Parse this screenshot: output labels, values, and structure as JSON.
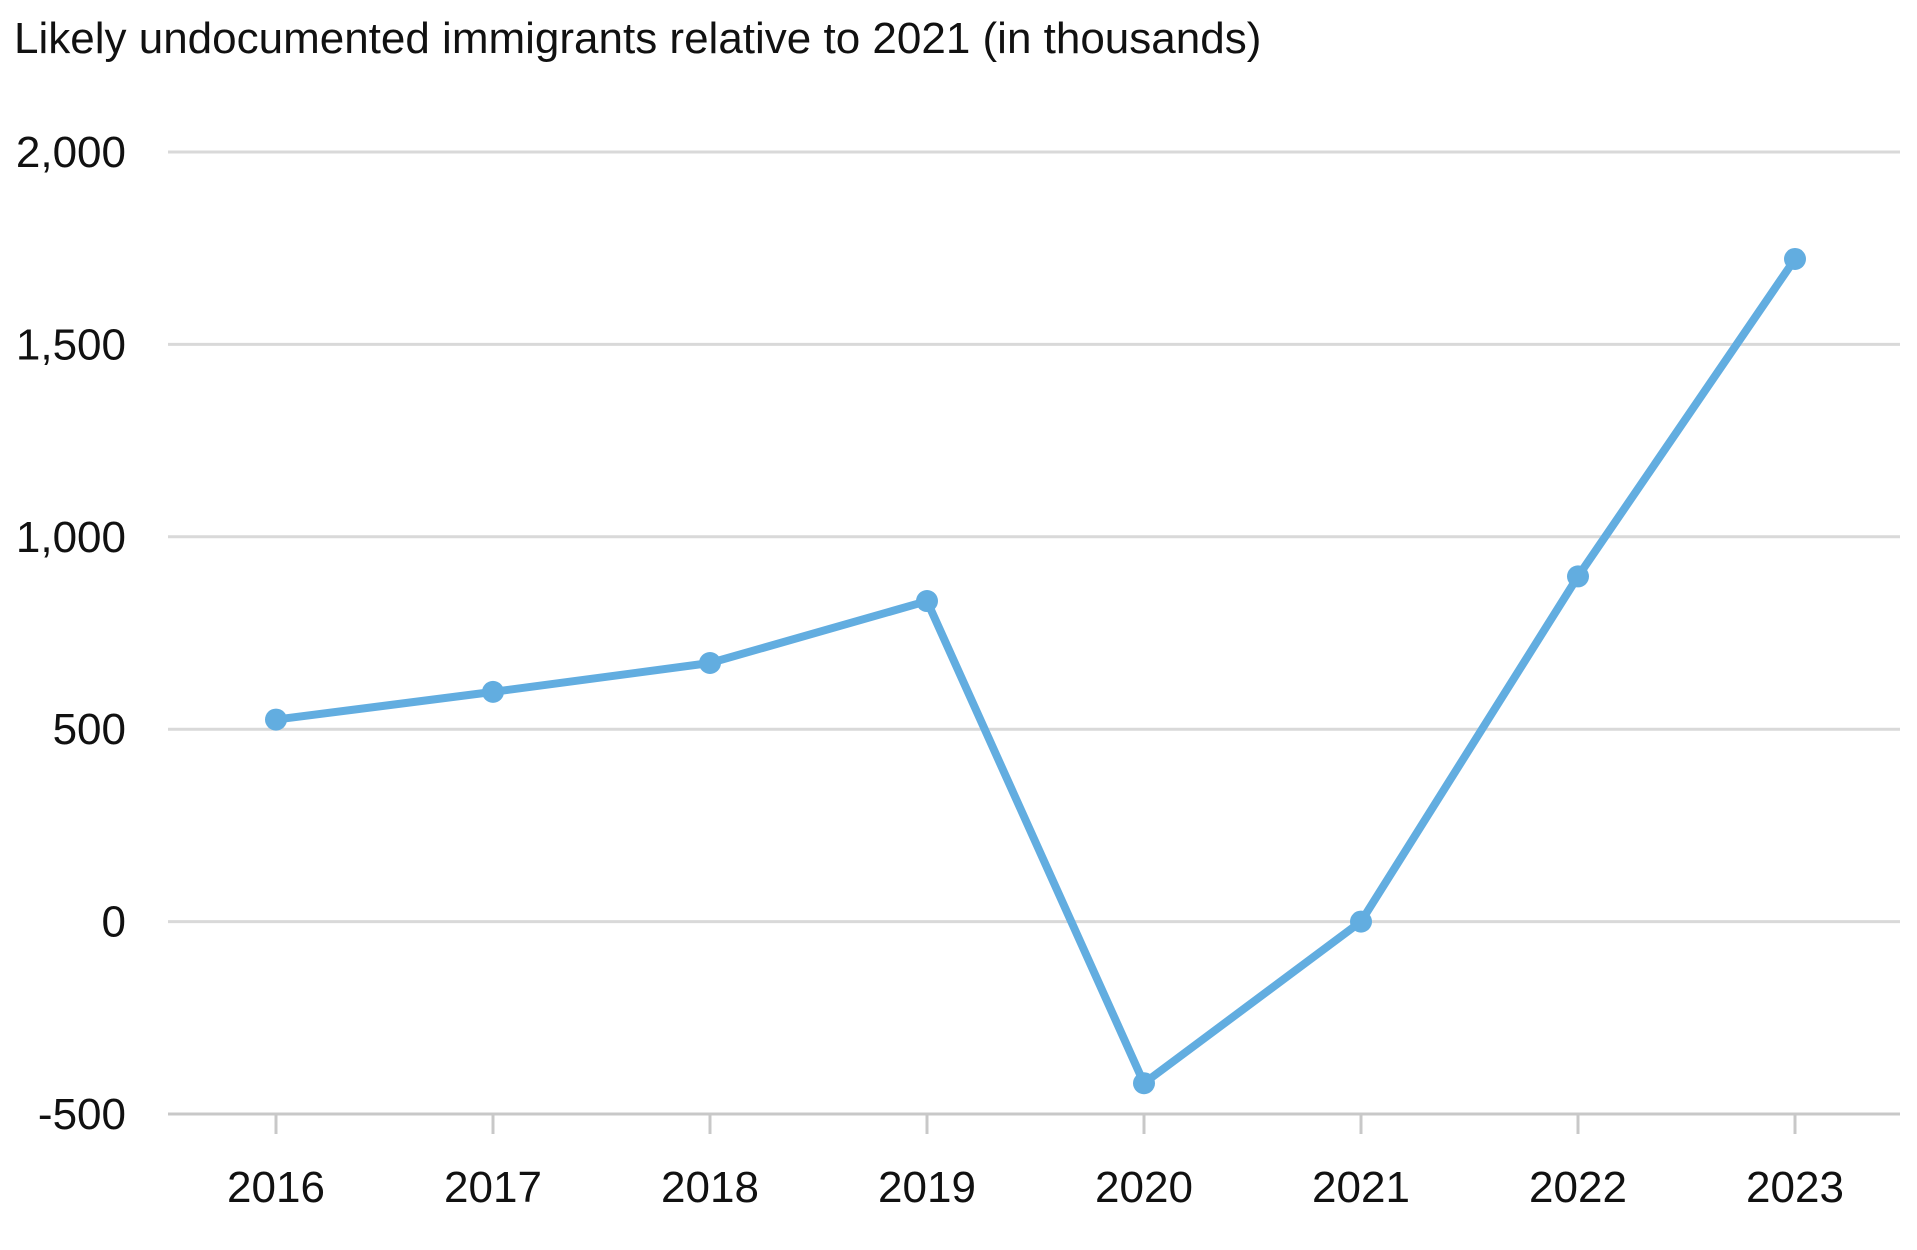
{
  "chart_data": {
    "type": "line",
    "title": "Likely undocumented immigrants relative to 2021 (in thousands)",
    "xlabel": "",
    "ylabel": "",
    "categories": [
      "2016",
      "2017",
      "2018",
      "2019",
      "2020",
      "2021",
      "2022",
      "2023"
    ],
    "series": [
      {
        "values": [
          525,
          597,
          672,
          833,
          -420,
          0,
          897,
          1722
        ]
      }
    ],
    "ylim": [
      -500,
      2000
    ],
    "yticks": [
      -500,
      0,
      500,
      1000,
      1500,
      2000
    ],
    "ytick_labels": [
      "-500",
      "0",
      "500",
      "1,000",
      "1,500",
      "2,000"
    ],
    "grid": true,
    "legend": "none",
    "colors": {
      "line": "#62ade0",
      "grid": "#d9d9d9",
      "axis": "#c8c8c8",
      "text": "#111111"
    }
  }
}
